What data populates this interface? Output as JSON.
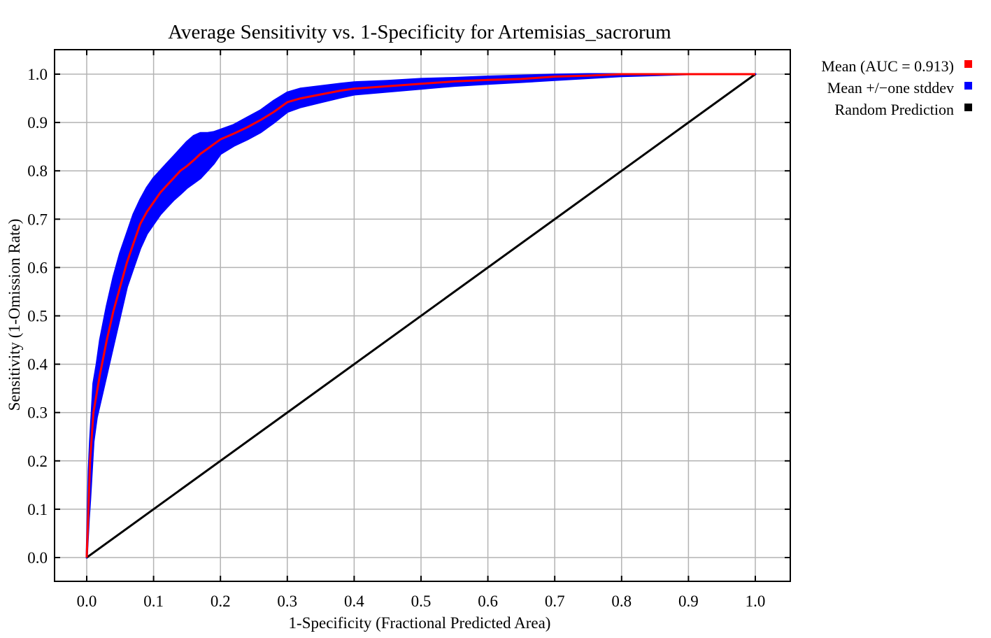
{
  "chart_data": {
    "type": "line",
    "title": "Average Sensitivity vs. 1-Specificity for Artemisias_sacrorum",
    "xlabel": "1-Specificity (Fractional Predicted Area)",
    "ylabel": "Sensitivity (1-Omission Rate)",
    "xlim": [
      0.0,
      1.0
    ],
    "ylim": [
      0.0,
      1.0
    ],
    "xticks": [
      "0.0",
      "0.1",
      "0.2",
      "0.3",
      "0.4",
      "0.5",
      "0.6",
      "0.7",
      "0.8",
      "0.9",
      "1.0"
    ],
    "yticks": [
      "0.0",
      "0.1",
      "0.2",
      "0.3",
      "0.4",
      "0.5",
      "0.6",
      "0.7",
      "0.8",
      "0.9",
      "1.0"
    ],
    "grid": true,
    "legend_position": "right",
    "series": [
      {
        "name": "Mean (AUC = 0.913)",
        "color": "#ff0000",
        "x": [
          0.0,
          0.003,
          0.005,
          0.01,
          0.015,
          0.02,
          0.03,
          0.04,
          0.05,
          0.06,
          0.07,
          0.08,
          0.09,
          0.1,
          0.11,
          0.12,
          0.13,
          0.14,
          0.15,
          0.16,
          0.17,
          0.18,
          0.19,
          0.2,
          0.22,
          0.24,
          0.26,
          0.28,
          0.3,
          0.32,
          0.35,
          0.38,
          0.4,
          0.45,
          0.5,
          0.55,
          0.6,
          0.65,
          0.7,
          0.75,
          0.8,
          0.85,
          0.9,
          0.95,
          1.0
        ],
        "y": [
          0.0,
          0.12,
          0.2,
          0.3,
          0.34,
          0.38,
          0.45,
          0.51,
          0.56,
          0.61,
          0.65,
          0.69,
          0.715,
          0.735,
          0.755,
          0.77,
          0.785,
          0.8,
          0.81,
          0.822,
          0.835,
          0.845,
          0.855,
          0.865,
          0.877,
          0.89,
          0.905,
          0.922,
          0.942,
          0.95,
          0.958,
          0.966,
          0.97,
          0.975,
          0.98,
          0.985,
          0.988,
          0.99,
          0.995,
          0.997,
          1.0,
          1.0,
          1.0,
          1.0,
          1.0
        ]
      },
      {
        "name": "Mean +/−one stddev",
        "color": "#0000ff",
        "x": [
          0.0,
          0.003,
          0.005,
          0.01,
          0.015,
          0.02,
          0.03,
          0.04,
          0.05,
          0.06,
          0.07,
          0.08,
          0.09,
          0.1,
          0.11,
          0.12,
          0.13,
          0.14,
          0.15,
          0.16,
          0.17,
          0.18,
          0.19,
          0.2,
          0.22,
          0.24,
          0.26,
          0.28,
          0.3,
          0.32,
          0.35,
          0.38,
          0.4,
          0.45,
          0.5,
          0.55,
          0.6,
          0.65,
          0.7,
          0.75,
          0.8,
          0.85,
          0.9,
          0.95,
          1.0
        ],
        "upper": [
          0.0,
          0.18,
          0.24,
          0.36,
          0.4,
          0.45,
          0.52,
          0.58,
          0.63,
          0.67,
          0.71,
          0.74,
          0.765,
          0.785,
          0.8,
          0.815,
          0.83,
          0.845,
          0.86,
          0.872,
          0.878,
          0.878,
          0.88,
          0.885,
          0.895,
          0.91,
          0.925,
          0.945,
          0.962,
          0.97,
          0.975,
          0.98,
          0.983,
          0.986,
          0.99,
          0.992,
          0.995,
          0.997,
          0.999,
          1.0,
          1.0,
          1.0,
          1.0,
          1.0,
          1.0
        ],
        "lower": [
          0.0,
          0.08,
          0.12,
          0.24,
          0.29,
          0.32,
          0.38,
          0.44,
          0.5,
          0.56,
          0.6,
          0.64,
          0.67,
          0.69,
          0.71,
          0.725,
          0.74,
          0.752,
          0.765,
          0.775,
          0.785,
          0.8,
          0.815,
          0.835,
          0.852,
          0.865,
          0.88,
          0.9,
          0.922,
          0.932,
          0.942,
          0.952,
          0.958,
          0.964,
          0.97,
          0.976,
          0.98,
          0.984,
          0.988,
          0.992,
          0.996,
          0.998,
          1.0,
          1.0,
          1.0
        ]
      },
      {
        "name": "Random Prediction",
        "color": "#000000",
        "x": [
          0.0,
          1.0
        ],
        "y": [
          0.0,
          1.0
        ]
      }
    ]
  }
}
